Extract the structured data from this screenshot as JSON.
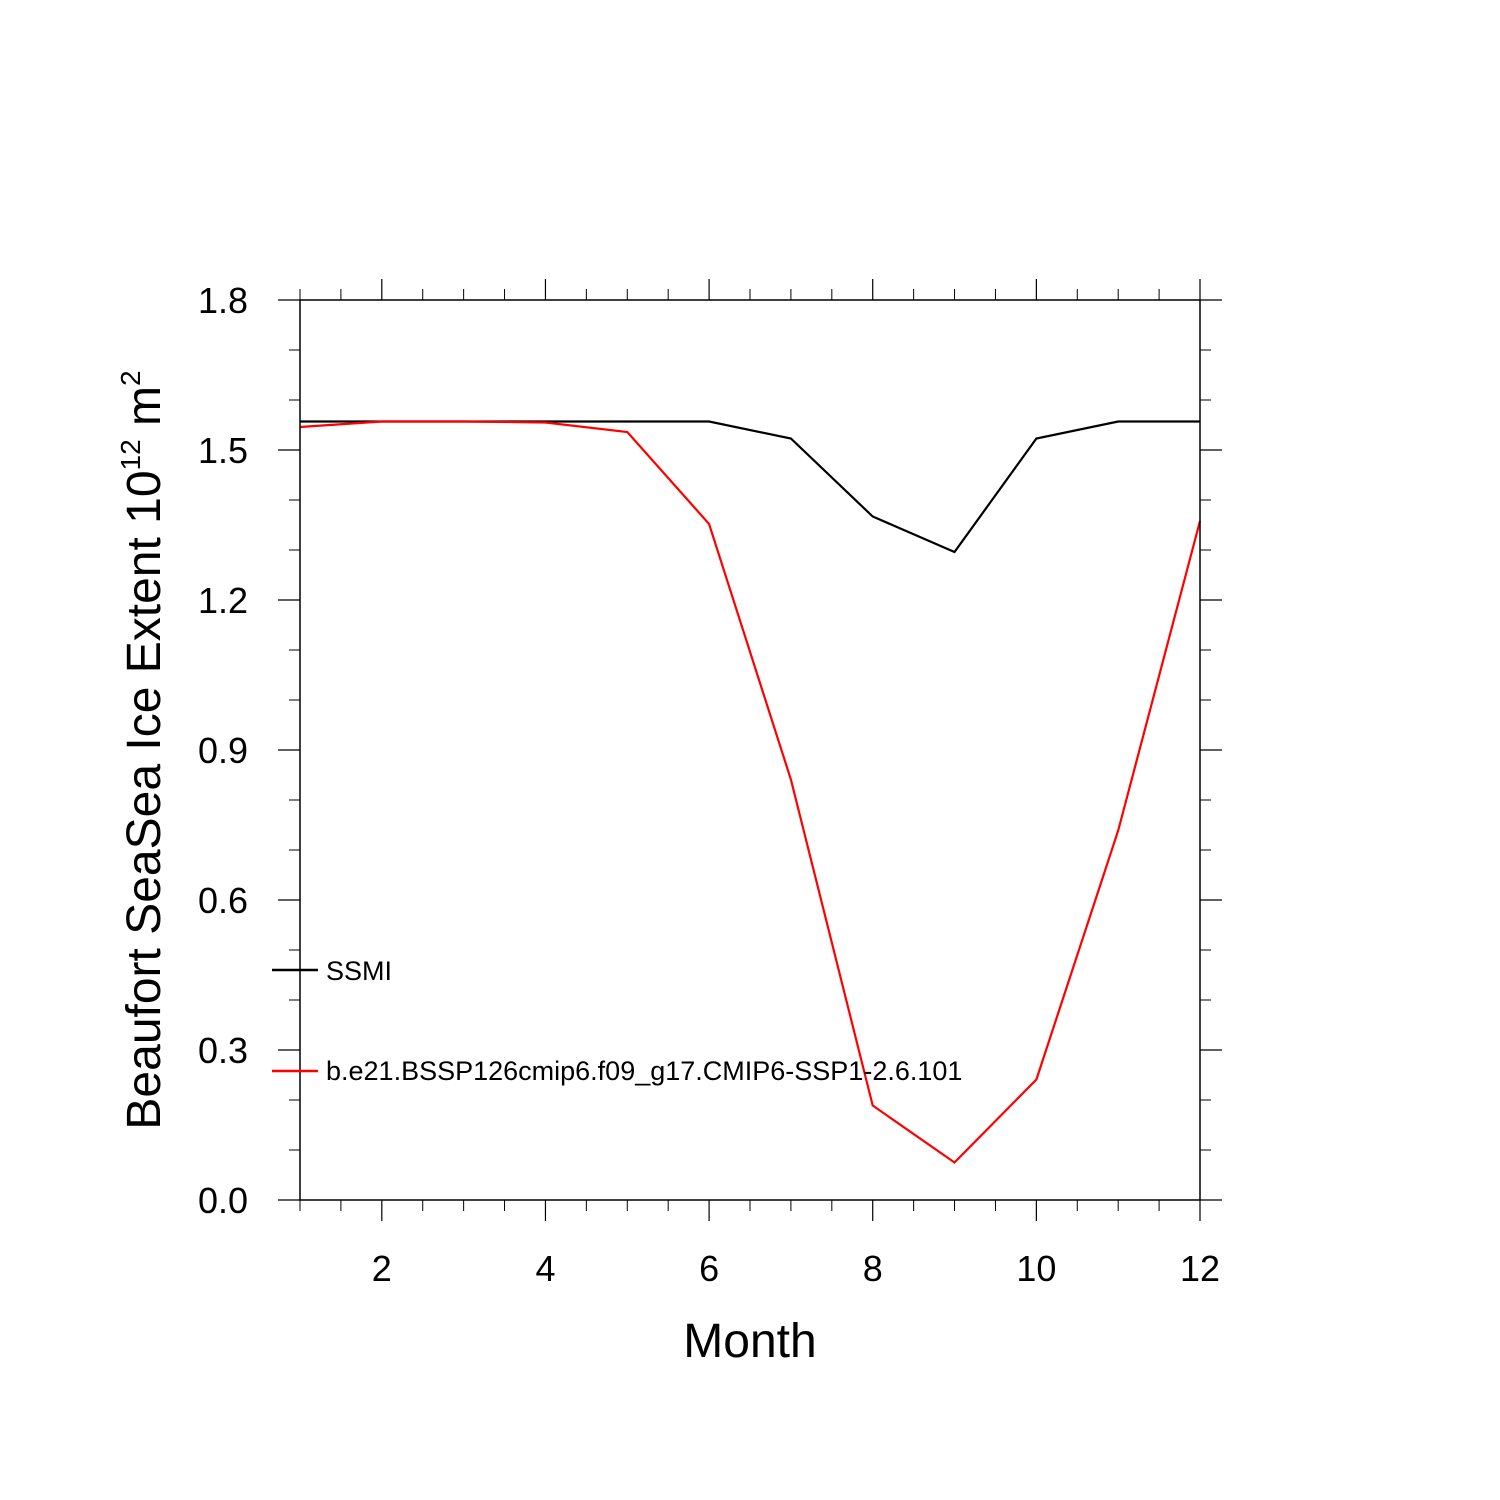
{
  "chart_data": {
    "type": "line",
    "title": "",
    "xlabel": "Month",
    "ylabel": "Beaufort SeaSea Ice Extent 10",
    "ylabel_exp": "12",
    "ylabel_unit": "m",
    "ylabel_unit_exp": "2",
    "xlim": [
      1,
      12
    ],
    "ylim": [
      0.0,
      1.8
    ],
    "x_ticks": [
      2,
      4,
      6,
      8,
      10,
      12
    ],
    "x_tick_labels": [
      "2",
      "4",
      "6",
      "8",
      "10",
      "12"
    ],
    "y_ticks": [
      0.0,
      0.3,
      0.6,
      0.9,
      1.2,
      1.5,
      1.8
    ],
    "y_tick_labels": [
      "0.0",
      "0.3",
      "0.6",
      "0.9",
      "1.2",
      "1.5",
      "1.8"
    ],
    "grid": false,
    "legend_position": "lower-left",
    "x": [
      1,
      2,
      3,
      4,
      5,
      6,
      7,
      8,
      9,
      10,
      11,
      12
    ],
    "series": [
      {
        "name": "SSMI",
        "color": "#000000",
        "values": [
          1.557,
          1.557,
          1.557,
          1.557,
          1.557,
          1.557,
          1.523,
          1.367,
          1.296,
          1.523,
          1.557,
          1.557
        ]
      },
      {
        "name": "b.e21.BSSP126cmip6.f09_g17.CMIP6-SSP1-2.6.101",
        "color": "#ff0000",
        "values": [
          1.546,
          1.557,
          1.557,
          1.555,
          1.536,
          1.352,
          0.841,
          0.189,
          0.075,
          0.241,
          0.739,
          1.358
        ]
      }
    ]
  }
}
